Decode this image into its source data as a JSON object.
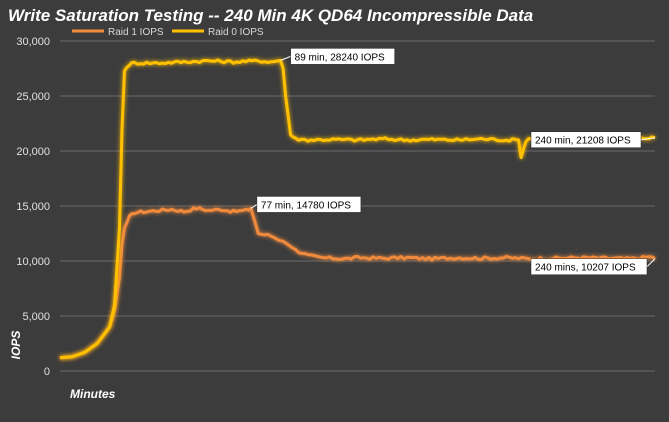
{
  "chart_data": {
    "type": "line",
    "title": "Write Saturation Testing -- 240 Min 4K QD64 Incompressible Data",
    "xlabel": "Minutes",
    "ylabel": "IOPS",
    "ylim": [
      0,
      30000
    ],
    "yticks": [
      "0",
      "5,000",
      "10,000",
      "15,000",
      "20,000",
      "25,000",
      "30,000"
    ],
    "ytick_values": [
      0,
      5000,
      10000,
      15000,
      20000,
      25000,
      30000
    ],
    "xlim": [
      0,
      240
    ],
    "grid": true,
    "legend_position": "top-left",
    "colors": {
      "background": "#3c3c3c",
      "grid": "#6a6a6a",
      "raid1": "#f08a3c",
      "raid0": "#ffc000"
    },
    "series": [
      {
        "name": "Raid 1 IOPS",
        "color": "#f08a3c",
        "x": [
          0,
          5,
          10,
          15,
          20,
          22,
          24,
          25,
          26,
          28,
          30,
          35,
          40,
          45,
          50,
          55,
          60,
          65,
          70,
          75,
          77,
          80,
          85,
          90,
          95,
          100,
          105,
          110,
          115,
          120,
          130,
          140,
          150,
          160,
          170,
          180,
          190,
          200,
          210,
          220,
          230,
          235,
          239,
          240
        ],
        "y": [
          1200,
          1300,
          1700,
          2500,
          4000,
          5500,
          8500,
          11500,
          13000,
          14000,
          14400,
          14500,
          14600,
          14700,
          14500,
          14800,
          14600,
          14700,
          14500,
          14600,
          14780,
          12500,
          12300,
          11800,
          11000,
          10500,
          10300,
          10250,
          10200,
          10300,
          10250,
          10300,
          10200,
          10300,
          10250,
          10300,
          10200,
          10250,
          10300,
          10250,
          10200,
          10300,
          10400,
          10207
        ]
      },
      {
        "name": "Raid 0 IOPS",
        "color": "#ffc000",
        "x": [
          0,
          5,
          10,
          15,
          20,
          22,
          24,
          25,
          26,
          28,
          30,
          40,
          50,
          60,
          70,
          80,
          85,
          89,
          90,
          91,
          93,
          95,
          100,
          110,
          120,
          130,
          140,
          150,
          160,
          170,
          180,
          185,
          186,
          188,
          190,
          200,
          210,
          220,
          230,
          240
        ],
        "y": [
          1200,
          1300,
          1700,
          2500,
          4000,
          6000,
          13000,
          22000,
          27300,
          27900,
          28000,
          28000,
          28100,
          28200,
          28100,
          28200,
          28100,
          28240,
          27500,
          25000,
          21500,
          21100,
          21000,
          21050,
          21000,
          21100,
          21000,
          21050,
          21000,
          21100,
          21000,
          21000,
          19400,
          21000,
          21200,
          21000,
          20900,
          21000,
          21100,
          21208
        ]
      }
    ],
    "annotations": [
      {
        "text": "89 min, 28240 IOPS",
        "x": 89,
        "y": 28240
      },
      {
        "text": "240 min, 21208 IOPS",
        "x": 240,
        "y": 21208
      },
      {
        "text": "77 min, 14780 IOPS",
        "x": 77,
        "y": 14780
      },
      {
        "text": "240 mins, 10207 IOPS",
        "x": 240,
        "y": 10207
      }
    ]
  }
}
